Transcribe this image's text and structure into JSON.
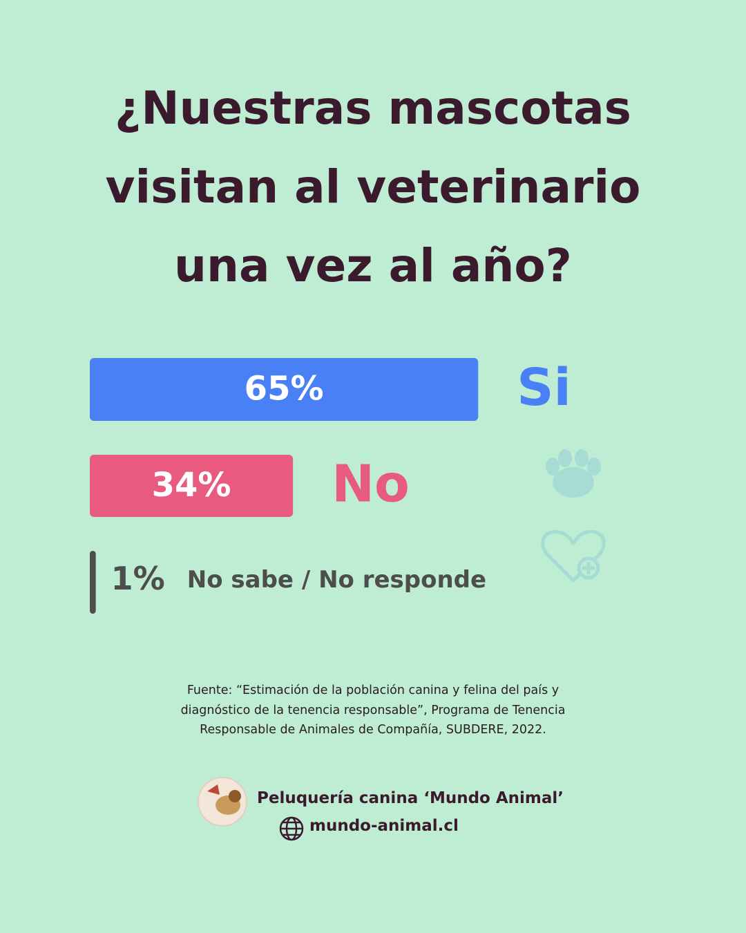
{
  "chart_data": {
    "type": "hbar",
    "title": "¿Nuestras mascotas visitan al veterinario una vez al año?",
    "categories": [
      "Si",
      "No",
      "No sabe / No responde"
    ],
    "values": [
      65,
      34,
      1
    ],
    "value_labels": [
      "65%",
      "34%",
      "1%"
    ],
    "colors": [
      "#4a80f5",
      "#e85a7e",
      "#4d4d4d"
    ]
  },
  "source": "Fuente: “Estimación de la población canina y felina del país y diagnóstico de la tenencia responsable”, Programa de Tenencia Responsable de Animales de Compañía, SUBDERE, 2022.",
  "footer": {
    "brand": "Peluquería canina ‘Mundo Animal’",
    "website": "mundo-animal.cl"
  }
}
